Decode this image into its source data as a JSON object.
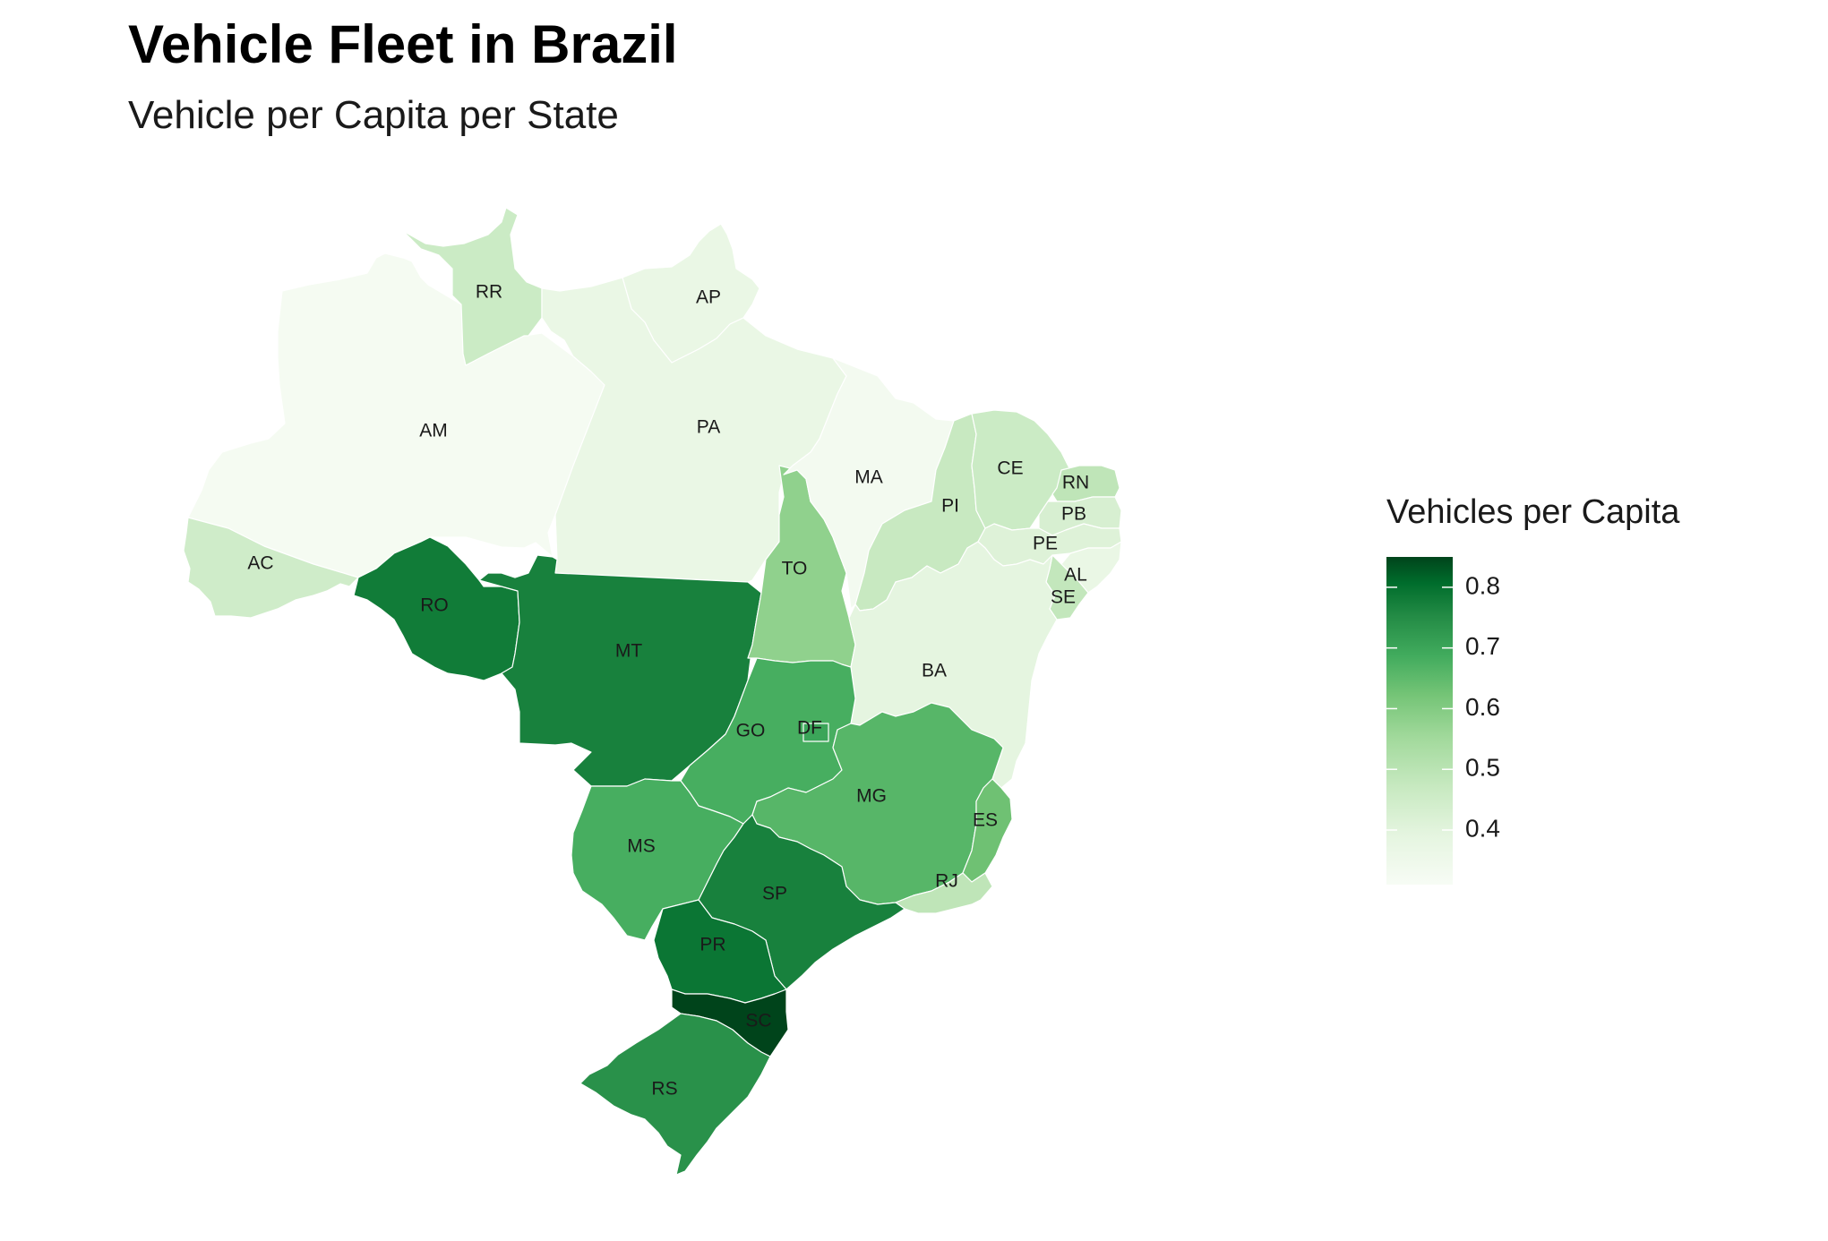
{
  "chart_data": {
    "type": "choropleth",
    "title": "Vehicle Fleet in Brazil",
    "subtitle": "Vehicle per Capita per State",
    "legend": {
      "title": "Vehicles per Capita",
      "range": [
        0.31,
        0.85
      ],
      "ticks": [
        0.4,
        0.5,
        0.6,
        0.7,
        0.8
      ],
      "tick_labels": [
        "0.4",
        "0.5",
        "0.6",
        "0.7",
        "0.8"
      ],
      "placement": "right",
      "color_low": "#f7fcf5",
      "color_high": "#00441b",
      "palette": "Greens"
    },
    "states": [
      {
        "abbr": "AM",
        "value": 0.32
      },
      {
        "abbr": "RR",
        "value": 0.46
      },
      {
        "abbr": "AP",
        "value": 0.37
      },
      {
        "abbr": "PA",
        "value": 0.37
      },
      {
        "abbr": "AC",
        "value": 0.45
      },
      {
        "abbr": "RO",
        "value": 0.78
      },
      {
        "abbr": "MT",
        "value": 0.77
      },
      {
        "abbr": "TO",
        "value": 0.58
      },
      {
        "abbr": "MA",
        "value": 0.33
      },
      {
        "abbr": "PI",
        "value": 0.47
      },
      {
        "abbr": "CE",
        "value": 0.46
      },
      {
        "abbr": "RN",
        "value": 0.49
      },
      {
        "abbr": "PB",
        "value": 0.43
      },
      {
        "abbr": "PE",
        "value": 0.41
      },
      {
        "abbr": "AL",
        "value": 0.37
      },
      {
        "abbr": "SE",
        "value": 0.48
      },
      {
        "abbr": "BA",
        "value": 0.39
      },
      {
        "abbr": "GO",
        "value": 0.68
      },
      {
        "abbr": "DF",
        "value": 0.7
      },
      {
        "abbr": "MG",
        "value": 0.66
      },
      {
        "abbr": "ES",
        "value": 0.63
      },
      {
        "abbr": "RJ",
        "value": 0.49
      },
      {
        "abbr": "MS",
        "value": 0.68
      },
      {
        "abbr": "SP",
        "value": 0.77
      },
      {
        "abbr": "PR",
        "value": 0.79
      },
      {
        "abbr": "SC",
        "value": 0.85
      },
      {
        "abbr": "RS",
        "value": 0.74
      }
    ]
  }
}
